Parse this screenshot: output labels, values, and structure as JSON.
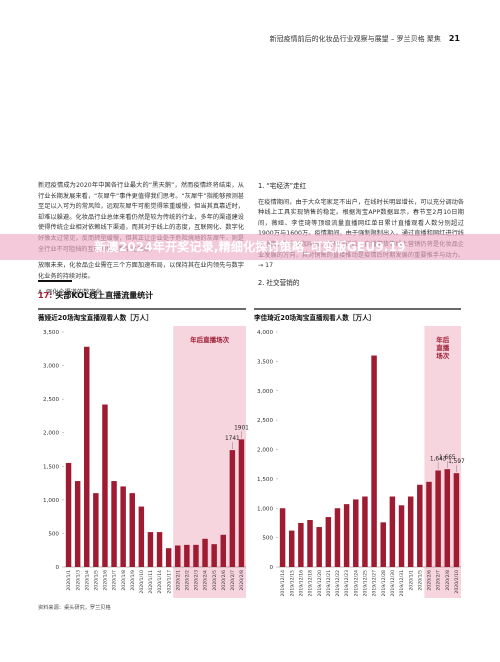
{
  "header": {
    "title": "新冠疫情前后的化妆品行业观察与展望 – 罗兰贝格 聚焦",
    "page": "21"
  },
  "left_column": {
    "paragraphs": [
      "新冠疫情成为2020年中国各行业最大的“黑天鹅”，然而疫情终将结束，从行业长期发展来看，“灰犀牛”事件更值得我们思考。“灰犀牛”指能够预测甚至足以入可为的常风险，远观灰犀牛可能觉得笨重缓慢，但当其真靠近时，却难以躲避。化妆品行业总体来看仍然是较为传统的行业，多年的渠道建设使得传统企业相对依赖线下渠道，而其对于线上的态度，互联网化、数字化好像太过常见，反而转型缓慢，但其正让企业处于危险境地的灰犀牛，则是全行业不可阻挡的互联网化、数字化浪潮。",
      "放眼未来，化妆品企业需在三个方面加速布局，以保持其在业内领先与数字化业务的持续对接。",
      "A. 强化全渠道的数字化"
    ]
  },
  "right_column": {
    "heading": "1. “宅经济”走红",
    "paragraphs": [
      "在疫情期间，由于大众宅家足不出户，在线时长明显增长，可以充分调动各种线上工具实现销售的稳定。根据淘宝APP数据显示，春节至2月10日期间，薇娅、李佳琦等顶级流量直播网红单日累计直播观看人数分别超过1900万与1600万。疫情期间，由于强制限制出入，通过直播和网红进行线上销售，带货增加明显，而疫情过后，直播带货等线上营销仍将是化妆品企业发展的方向，其对销售的直接推动是疫情后时期发展的重要推手与动力。→ 17"
    ],
    "heading2": "2. 社交营销的"
  },
  "banner": "新澳2024年开奖记录,精细化探讨策略_可变版GEU9.19",
  "figure": {
    "number": "17:",
    "title": "头部KOL线上直播流量统计",
    "source": "资料来源：桌头研究，罗兰贝格"
  },
  "chart_data": [
    {
      "type": "bar",
      "title": "薇娅近20场淘宝直播观看人数［万人］",
      "color": "#9e1b32",
      "categories": [
        "2020/1/1",
        "2020/1/3",
        "2020/1/4",
        "2020/1/5",
        "2020/1/6",
        "2020/1/7",
        "2020/1/8",
        "2020/1/9",
        "2020/1/10",
        "2020/1/11",
        "2020/1/14",
        "2020/1/17",
        "2020/2/1",
        "2020/2/2",
        "2020/2/3",
        "2020/2/4",
        "2020/2/5",
        "2020/2/6",
        "2020/2/7",
        "2020/2/8"
      ],
      "values": [
        1550,
        1280,
        3280,
        1100,
        2420,
        1280,
        1200,
        1100,
        900,
        520,
        520,
        280,
        320,
        330,
        330,
        420,
        340,
        480,
        1741,
        1901
      ],
      "value_labels": [
        null,
        null,
        null,
        null,
        null,
        null,
        null,
        null,
        null,
        null,
        null,
        null,
        null,
        null,
        null,
        null,
        null,
        null,
        "1741",
        "1901"
      ],
      "ylim": [
        0,
        3500
      ],
      "yticks": [
        0,
        500,
        {
          "value": 1000,
          "label": "1,000"
        },
        {
          "value": 1500,
          "label": "1,500"
        },
        {
          "value": 2000,
          "label": "2,000"
        },
        {
          "value": 2500,
          "label": "2,500"
        },
        {
          "value": 3000,
          "label": "3,000"
        },
        {
          "value": 3500,
          "label": "3,500"
        }
      ],
      "grid": false,
      "highlight": {
        "label": "年后直播场次",
        "from": "2020/2/1",
        "to": "2020/2/8",
        "color": "#f7d5df"
      }
    },
    {
      "type": "bar",
      "title": "李佳琦近20场淘宝直播观看人数［万人］",
      "color": "#9e1b32",
      "categories": [
        "2019/12/14",
        "2019/12/15",
        "2019/12/16",
        "2019/12/18",
        "2019/12/20",
        "2019/12/21",
        "2019/12/22",
        "2019/12/23",
        "2019/12/24",
        "2019/12/25",
        "2019/12/27",
        "2019/12/28",
        "2019/12/30",
        "2019/12/31",
        "2020/1/1",
        "2020/1/5",
        "2020/2/6",
        "2020/2/7",
        "2020/2/8",
        "2020/2/10"
      ],
      "values": [
        1000,
        620,
        750,
        800,
        680,
        850,
        1000,
        1070,
        1150,
        1200,
        3600,
        760,
        1200,
        1050,
        1200,
        1400,
        1450,
        1643,
        1665,
        1597
      ],
      "value_labels": [
        null,
        null,
        null,
        null,
        null,
        null,
        null,
        null,
        null,
        null,
        null,
        null,
        null,
        null,
        null,
        null,
        null,
        "1,643",
        "1,665",
        "1,597"
      ],
      "ylim": [
        0,
        4000
      ],
      "yticks": [
        0,
        500,
        {
          "value": 1000,
          "label": "1,000"
        },
        {
          "value": 1500,
          "label": "1,500"
        },
        {
          "value": 2000,
          "label": "2,000"
        },
        {
          "value": 2500,
          "label": "2,500"
        },
        {
          "value": 3000,
          "label": "3,000"
        },
        {
          "value": 3500,
          "label": "3,500"
        },
        {
          "value": 4000,
          "label": "4,000"
        }
      ],
      "grid": false,
      "highlight": {
        "label": "年后直播场次",
        "from": "2020/2/6",
        "to": "2020/2/10",
        "color": "#f7d5df"
      }
    }
  ]
}
